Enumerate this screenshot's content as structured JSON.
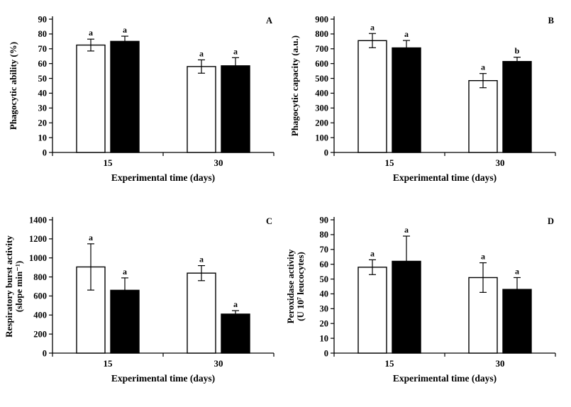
{
  "figure": {
    "background": "#ffffff",
    "bar_colors": {
      "series1": "#ffffff",
      "series2": "#000000"
    }
  },
  "chart_data": [
    {
      "type": "bar",
      "panel_label": "A",
      "ylabel_lines": [
        "Phagocytic ability (%)"
      ],
      "xlabel": "Experimental time (days)",
      "categories": [
        "15",
        "30"
      ],
      "ylim": [
        0,
        90
      ],
      "ytick_step": 10,
      "grid": false,
      "legend": "none",
      "series": [
        {
          "name": "white-bars",
          "fill": "#ffffff",
          "values": [
            72.5,
            58
          ],
          "errors": [
            4,
            4.5
          ],
          "letters": [
            "a",
            "a"
          ]
        },
        {
          "name": "black-bars",
          "fill": "#000000",
          "values": [
            75,
            58.5
          ],
          "errors": [
            3.5,
            5.5
          ],
          "letters": [
            "a",
            "a"
          ]
        }
      ]
    },
    {
      "type": "bar",
      "panel_label": "B",
      "ylabel_lines": [
        "Phagocytic capacity (a.u.)"
      ],
      "xlabel": "Experimental time (days)",
      "categories": [
        "15",
        "30"
      ],
      "ylim": [
        0,
        900
      ],
      "ytick_step": 100,
      "grid": false,
      "legend": "none",
      "series": [
        {
          "name": "white-bars",
          "fill": "#ffffff",
          "values": [
            755,
            485
          ],
          "errors": [
            48,
            48
          ],
          "letters": [
            "a",
            "a"
          ]
        },
        {
          "name": "black-bars",
          "fill": "#000000",
          "values": [
            706,
            614
          ],
          "errors": [
            50,
            29
          ],
          "letters": [
            "a",
            "b"
          ]
        }
      ]
    },
    {
      "type": "bar",
      "panel_label": "C",
      "ylabel_lines": [
        "Respiratory burst activity",
        "(slope min⁻¹)"
      ],
      "xlabel": "Experimental time (days)",
      "categories": [
        "15",
        "30"
      ],
      "ylim": [
        0,
        1400
      ],
      "ytick_step": 200,
      "grid": false,
      "legend": "none",
      "series": [
        {
          "name": "white-bars",
          "fill": "#ffffff",
          "values": [
            905,
            840
          ],
          "errors": [
            243,
            79
          ],
          "letters": [
            "a",
            "a"
          ]
        },
        {
          "name": "black-bars",
          "fill": "#000000",
          "values": [
            660,
            410
          ],
          "errors": [
            130,
            36
          ],
          "letters": [
            "a",
            "a"
          ]
        }
      ]
    },
    {
      "type": "bar",
      "panel_label": "D",
      "ylabel_lines": [
        "Peroxidase activity",
        "(U 10⁷ leucocytes)"
      ],
      "xlabel": "Experimental time (days)",
      "categories": [
        "15",
        "30"
      ],
      "ylim": [
        0,
        90
      ],
      "ytick_step": 10,
      "grid": false,
      "legend": "none",
      "series": [
        {
          "name": "white-bars",
          "fill": "#ffffff",
          "values": [
            58,
            51
          ],
          "errors": [
            5,
            10
          ],
          "letters": [
            "a",
            "a"
          ]
        },
        {
          "name": "black-bars",
          "fill": "#000000",
          "values": [
            62,
            43
          ],
          "errors": [
            17,
            8
          ],
          "letters": [
            "a",
            "a"
          ]
        }
      ]
    }
  ]
}
